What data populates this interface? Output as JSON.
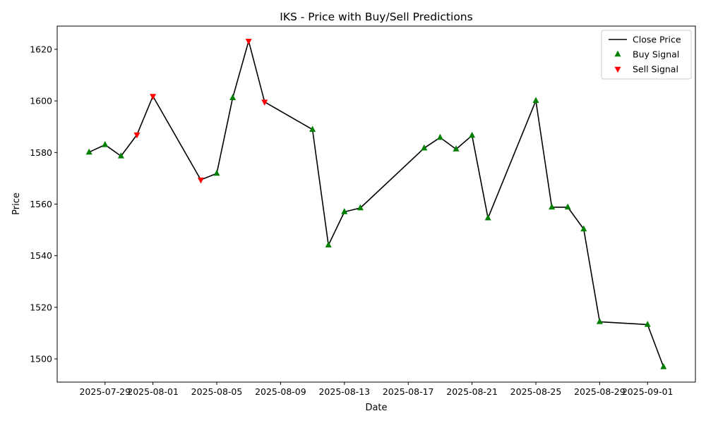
{
  "chart_data": {
    "type": "line",
    "title": "IKS - Price with Buy/Sell Predictions",
    "xlabel": "Date",
    "ylabel": "Price",
    "x_ticks": [
      "2025-07-29",
      "2025-08-01",
      "2025-08-05",
      "2025-08-09",
      "2025-08-13",
      "2025-08-17",
      "2025-08-21",
      "2025-08-25",
      "2025-08-29",
      "2025-09-01"
    ],
    "y_ticks": [
      "1500",
      "1520",
      "1540",
      "1560",
      "1580",
      "1600",
      "1620"
    ],
    "xlim": [
      "2025-07-26",
      "2025-09-04"
    ],
    "ylim": [
      1491,
      1629
    ],
    "grid": false,
    "legend_position": "top-right",
    "colors": {
      "close": "#000000",
      "buy": "#008000",
      "sell": "#ff0000"
    },
    "series": [
      {
        "name": "Close Price",
        "kind": "line",
        "points": [
          {
            "date": "2025-07-28",
            "value": 1580.1
          },
          {
            "date": "2025-07-29",
            "value": 1583.0
          },
          {
            "date": "2025-07-30",
            "value": 1578.6
          },
          {
            "date": "2025-07-31",
            "value": 1586.9
          },
          {
            "date": "2025-08-01",
            "value": 1601.8
          },
          {
            "date": "2025-08-04",
            "value": 1569.4
          },
          {
            "date": "2025-08-05",
            "value": 1571.9
          },
          {
            "date": "2025-08-06",
            "value": 1601.2
          },
          {
            "date": "2025-08-07",
            "value": 1623.2
          },
          {
            "date": "2025-08-08",
            "value": 1599.6
          },
          {
            "date": "2025-08-11",
            "value": 1588.9
          },
          {
            "date": "2025-08-12",
            "value": 1544.1
          },
          {
            "date": "2025-08-13",
            "value": 1557.0
          },
          {
            "date": "2025-08-14",
            "value": 1558.5
          },
          {
            "date": "2025-08-18",
            "value": 1581.7
          },
          {
            "date": "2025-08-19",
            "value": 1585.8
          },
          {
            "date": "2025-08-20",
            "value": 1581.3
          },
          {
            "date": "2025-08-21",
            "value": 1586.6
          },
          {
            "date": "2025-08-22",
            "value": 1554.6
          },
          {
            "date": "2025-08-25",
            "value": 1600.1
          },
          {
            "date": "2025-08-26",
            "value": 1558.8
          },
          {
            "date": "2025-08-27",
            "value": 1558.8
          },
          {
            "date": "2025-08-28",
            "value": 1550.3
          },
          {
            "date": "2025-08-29",
            "value": 1514.4
          },
          {
            "date": "2025-09-01",
            "value": 1513.3
          },
          {
            "date": "2025-09-02",
            "value": 1496.9
          }
        ]
      },
      {
        "name": "Buy Signal",
        "kind": "scatter",
        "marker": "triangle-up",
        "points": [
          {
            "date": "2025-07-28",
            "value": 1580.1
          },
          {
            "date": "2025-07-29",
            "value": 1583.0
          },
          {
            "date": "2025-07-30",
            "value": 1578.6
          },
          {
            "date": "2025-08-05",
            "value": 1571.9
          },
          {
            "date": "2025-08-06",
            "value": 1601.2
          },
          {
            "date": "2025-08-11",
            "value": 1588.9
          },
          {
            "date": "2025-08-12",
            "value": 1544.1
          },
          {
            "date": "2025-08-13",
            "value": 1557.0
          },
          {
            "date": "2025-08-14",
            "value": 1558.5
          },
          {
            "date": "2025-08-18",
            "value": 1581.7
          },
          {
            "date": "2025-08-19",
            "value": 1585.8
          },
          {
            "date": "2025-08-20",
            "value": 1581.3
          },
          {
            "date": "2025-08-21",
            "value": 1586.6
          },
          {
            "date": "2025-08-22",
            "value": 1554.6
          },
          {
            "date": "2025-08-25",
            "value": 1600.1
          },
          {
            "date": "2025-08-26",
            "value": 1558.8
          },
          {
            "date": "2025-08-27",
            "value": 1558.8
          },
          {
            "date": "2025-08-28",
            "value": 1550.3
          },
          {
            "date": "2025-08-29",
            "value": 1514.4
          },
          {
            "date": "2025-09-01",
            "value": 1513.3
          },
          {
            "date": "2025-09-02",
            "value": 1496.9
          }
        ]
      },
      {
        "name": "Sell Signal",
        "kind": "scatter",
        "marker": "triangle-down",
        "points": [
          {
            "date": "2025-07-31",
            "value": 1586.9
          },
          {
            "date": "2025-08-01",
            "value": 1601.8
          },
          {
            "date": "2025-08-04",
            "value": 1569.4
          },
          {
            "date": "2025-08-07",
            "value": 1623.2
          },
          {
            "date": "2025-08-08",
            "value": 1599.6
          }
        ]
      }
    ]
  }
}
